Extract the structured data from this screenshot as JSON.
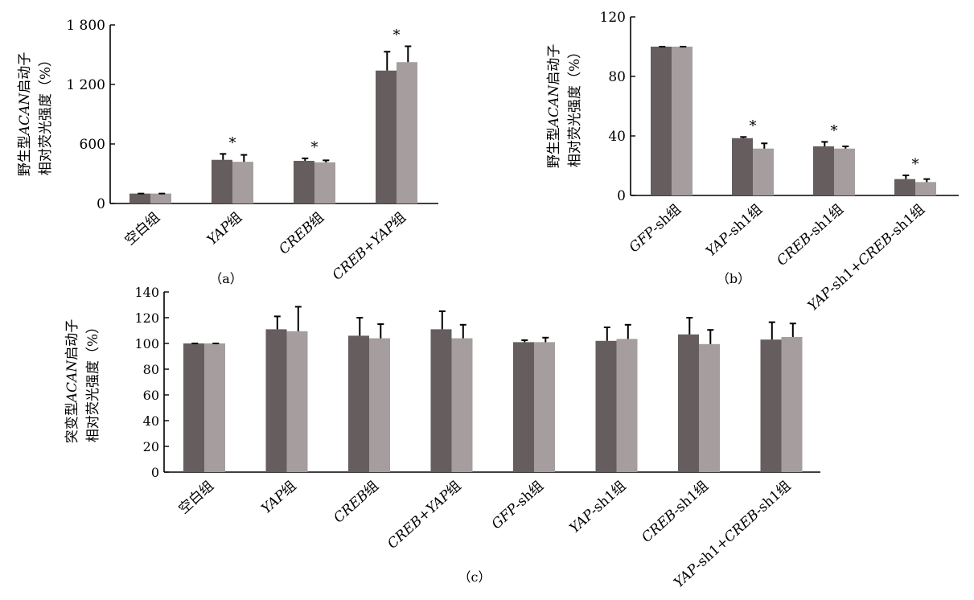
{
  "colors": {
    "dark_bar": "#655d5e",
    "light_bar": "#a59d9e"
  },
  "chart_data": [
    {
      "type": "bar",
      "panel_label": "（a）",
      "ylabel": [
        "野生型ACAN启动子",
        "相对荧光强度（%）"
      ],
      "ylim": [
        0,
        1800
      ],
      "y_ticks": [
        0,
        600,
        1200,
        1800
      ],
      "y_tick_labels": [
        "0",
        "600",
        "1 200",
        "1 800"
      ],
      "categories": [
        "空白组",
        "YAP组",
        "CREB组",
        "CREB+YAP组"
      ],
      "series": [
        {
          "values": [
            100,
            440,
            430,
            1340
          ],
          "errors": [
            0,
            60,
            25,
            190
          ]
        },
        {
          "values": [
            100,
            420,
            415,
            1425
          ],
          "errors": [
            0,
            70,
            20,
            160
          ]
        }
      ],
      "significance": [
        "",
        "*",
        "*",
        "*"
      ]
    },
    {
      "type": "bar",
      "panel_label": "（b）",
      "ylabel": [
        "野生型ACAN启动子",
        "相对荧光强度（%）"
      ],
      "ylim": [
        0,
        120
      ],
      "y_ticks": [
        0,
        40,
        80,
        120
      ],
      "y_tick_labels": [
        "0",
        "40",
        "80",
        "120"
      ],
      "categories": [
        "GFP-sh组",
        "YAP-sh1组",
        "CREB-sh1组",
        "YAP-sh1+CREB-sh1组"
      ],
      "series": [
        {
          "values": [
            100,
            38.5,
            33,
            11
          ],
          "errors": [
            0,
            0.8,
            3,
            2.5
          ]
        },
        {
          "values": [
            100,
            31.5,
            31.5,
            9
          ],
          "errors": [
            0,
            3.5,
            1.5,
            2
          ]
        }
      ],
      "significance": [
        "",
        "*",
        "*",
        "*"
      ]
    },
    {
      "type": "bar",
      "panel_label": "（c）",
      "ylabel": [
        "突变型ACAN启动子",
        "相对荧光强度（%）"
      ],
      "ylim": [
        0,
        140
      ],
      "y_ticks": [
        0,
        20,
        40,
        60,
        80,
        100,
        120,
        140
      ],
      "y_tick_labels": [
        "0",
        "20",
        "40",
        "60",
        "80",
        "100",
        "120",
        "140"
      ],
      "categories": [
        "空白组",
        "YAP组",
        "CREB组",
        "CREB+YAP组",
        "GFP-sh组",
        "YAP-sh1组",
        "CREB-sh1组",
        "YAP-sh1+CREB-sh1组"
      ],
      "series": [
        {
          "values": [
            100,
            111,
            106,
            111,
            101,
            102,
            107,
            103
          ],
          "errors": [
            0,
            10,
            14,
            14,
            1.5,
            10.5,
            13,
            13.5
          ]
        },
        {
          "values": [
            100,
            109.5,
            104,
            104,
            101,
            103.5,
            99.5,
            105
          ],
          "errors": [
            0,
            19,
            11,
            10.5,
            3.5,
            11,
            11,
            10.5
          ]
        }
      ],
      "significance": [
        "",
        "",
        "",
        "",
        "",
        "",
        "",
        ""
      ]
    }
  ]
}
